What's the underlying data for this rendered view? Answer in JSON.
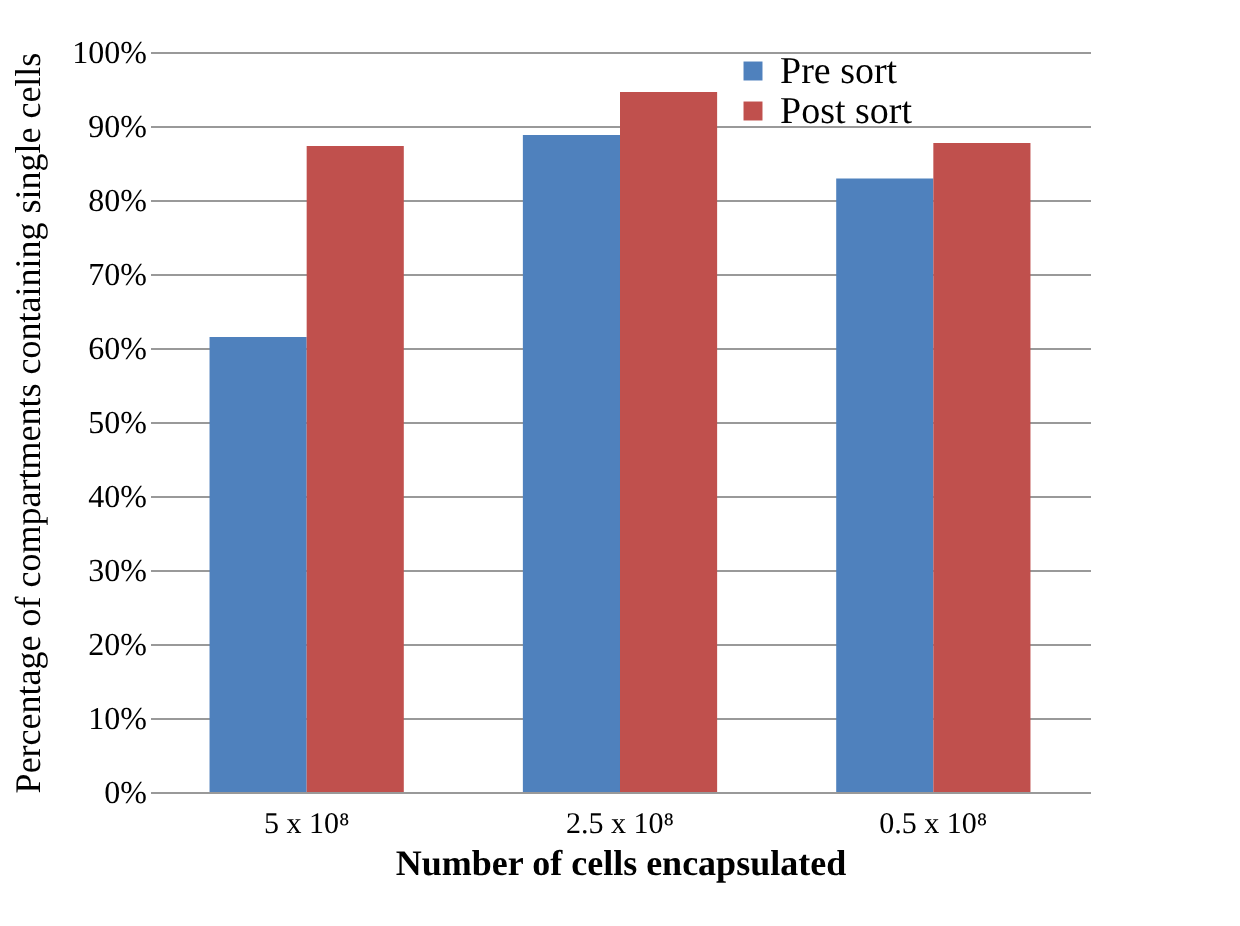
{
  "chart_data": {
    "type": "bar",
    "xlabel": "Number of cells encapsulated",
    "ylabel": "Percentage of compartments containing single cells",
    "categories": [
      "5 x 10⁸",
      "2.5 x 10⁸",
      "0.5 x 10⁸"
    ],
    "series": [
      {
        "name": "Pre sort",
        "color": "#4f81bd",
        "values": [
          61.5,
          88.8,
          82.9
        ]
      },
      {
        "name": "Post sort",
        "color": "#c0504d",
        "values": [
          87.3,
          94.6,
          87.7
        ]
      }
    ],
    "ylim": [
      0,
      100
    ],
    "yticks": [
      {
        "value": 0,
        "label": "0%"
      },
      {
        "value": 10,
        "label": "10%"
      },
      {
        "value": 20,
        "label": "20%"
      },
      {
        "value": 30,
        "label": "30%"
      },
      {
        "value": 40,
        "label": "40%"
      },
      {
        "value": 50,
        "label": "50%"
      },
      {
        "value": 60,
        "label": "60%"
      },
      {
        "value": 70,
        "label": "70%"
      },
      {
        "value": 80,
        "label": "80%"
      },
      {
        "value": 90,
        "label": "90%"
      },
      {
        "value": 100,
        "label": "100%"
      }
    ],
    "grid": "y",
    "legend": "top right"
  }
}
